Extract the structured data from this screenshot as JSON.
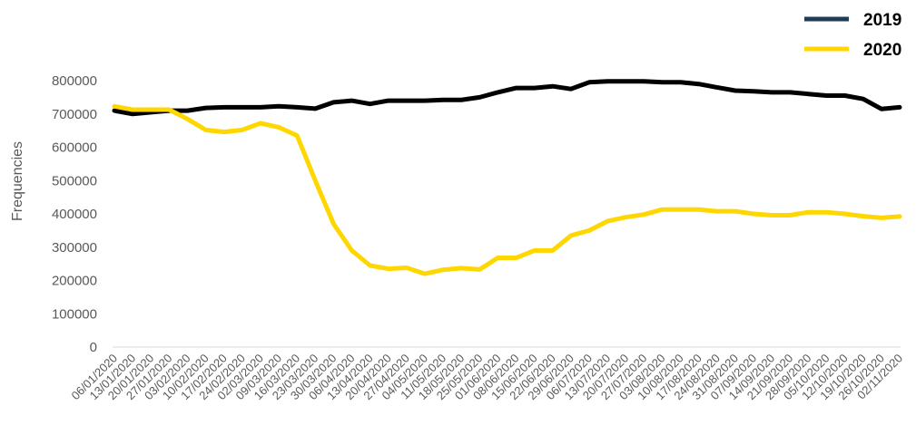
{
  "chart_data": {
    "type": "line",
    "title": "",
    "xlabel": "",
    "ylabel": "Frequencies",
    "ylim": [
      0,
      800000
    ],
    "y_ticks": [
      "800000",
      "700000",
      "600000",
      "500000",
      "400000",
      "300000",
      "200000",
      "100000",
      "0"
    ],
    "y_tick_values": [
      800000,
      700000,
      600000,
      500000,
      400000,
      300000,
      200000,
      100000,
      0
    ],
    "grid": false,
    "legend_position": "top-right",
    "categories": [
      "06/01/2020",
      "13/01/2020",
      "20/01/2020",
      "27/01/2020",
      "03/02/2020",
      "10/02/2020",
      "17/02/2020",
      "24/02/2020",
      "02/03/2020",
      "09/03/2020",
      "16/03/2020",
      "23/03/2020",
      "30/03/2020",
      "06/04/2020",
      "13/04/2020",
      "20/04/2020",
      "27/04/2020",
      "04/05/2020",
      "11/05/2020",
      "18/05/2020",
      "25/05/2020",
      "01/06/2020",
      "08/06/2020",
      "15/06/2020",
      "22/06/2020",
      "29/06/2020",
      "06/07/2020",
      "13/07/2020",
      "20/07/2020",
      "27/07/2020",
      "03/08/2020",
      "10/08/2020",
      "17/08/2020",
      "24/08/2020",
      "31/08/2020",
      "07/09/2020",
      "14/09/2020",
      "21/09/2020",
      "28/09/2020",
      "05/10/2020",
      "12/10/2020",
      "19/10/2020",
      "26/10/2020",
      "02/11/2020"
    ],
    "series": [
      {
        "name": "2019",
        "color": "#000000",
        "legend_color": "#1f3c57",
        "values": [
          710000,
          700000,
          705000,
          710000,
          710000,
          718000,
          720000,
          720000,
          720000,
          723000,
          720000,
          716000,
          735000,
          740000,
          730000,
          740000,
          740000,
          740000,
          742000,
          742000,
          750000,
          765000,
          778000,
          778000,
          783000,
          775000,
          795000,
          798000,
          798000,
          798000,
          795000,
          795000,
          790000,
          780000,
          770000,
          768000,
          765000,
          765000,
          760000,
          755000,
          755000,
          745000,
          715000,
          720000
        ]
      },
      {
        "name": "2020",
        "color": "#ffd700",
        "legend_color": "#ffd700",
        "values": [
          723000,
          713000,
          713000,
          713000,
          685000,
          652000,
          646000,
          652000,
          672000,
          660000,
          635000,
          500000,
          370000,
          290000,
          245000,
          235000,
          238000,
          220000,
          232000,
          237000,
          233000,
          268000,
          268000,
          290000,
          290000,
          335000,
          350000,
          378000,
          390000,
          398000,
          413000,
          413000,
          413000,
          408000,
          408000,
          400000,
          396000,
          396000,
          405000,
          405000,
          400000,
          393000,
          388000,
          392000
        ]
      }
    ]
  }
}
